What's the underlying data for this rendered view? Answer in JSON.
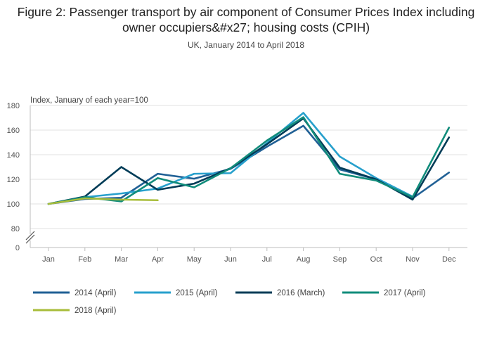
{
  "title": "Figure 2: Passenger transport by air component of Consumer Prices Index including owner occupiers&#x27; housing costs (CPIH)",
  "subtitle": "UK, January 2014 to April 2018",
  "chart_data": {
    "type": "line",
    "title": "Figure 2: Passenger transport by air component of Consumer Prices Index including owner occupiers&#x27; housing costs (CPIH)",
    "subtitle": "UK, January 2014 to April 2018",
    "xlabel": "",
    "ylabel": "Index, January of each year=100",
    "categories": [
      "Jan",
      "Feb",
      "Mar",
      "Apr",
      "May",
      "Jun",
      "Jul",
      "Aug",
      "Sep",
      "Oct",
      "Nov",
      "Dec"
    ],
    "yticks": [
      0,
      80,
      100,
      120,
      140,
      160,
      180
    ],
    "ylim": [
      80,
      180
    ],
    "axis_break": true,
    "grid": true,
    "legend_position": "bottom",
    "series": [
      {
        "name": "2014 (April)",
        "color": "#206095",
        "values": [
          100,
          104,
          105,
          124.5,
          120.5,
          128.5,
          146.5,
          163.5,
          128,
          120,
          104.5,
          125.5
        ]
      },
      {
        "name": "2015 (April)",
        "color": "#27a0cc",
        "values": [
          100,
          105.5,
          108.5,
          112.5,
          124.5,
          125,
          149.5,
          174,
          138.5,
          121,
          106,
          null
        ]
      },
      {
        "name": "2016 (March)",
        "color": "#003c57",
        "values": [
          100,
          106,
          130,
          111.5,
          116.5,
          129,
          148.5,
          169.5,
          129.5,
          120,
          103.5,
          154
        ]
      },
      {
        "name": "2017 (April)",
        "color": "#118c7b",
        "values": [
          100,
          105.5,
          102,
          121,
          113.5,
          129,
          151.5,
          170.5,
          124.5,
          119,
          105.5,
          162
        ]
      },
      {
        "name": "2018 (April)",
        "color": "#a8bd3a",
        "values": [
          100,
          104.5,
          103.5,
          103,
          null,
          null,
          null,
          null,
          null,
          null,
          null,
          null
        ]
      }
    ]
  }
}
